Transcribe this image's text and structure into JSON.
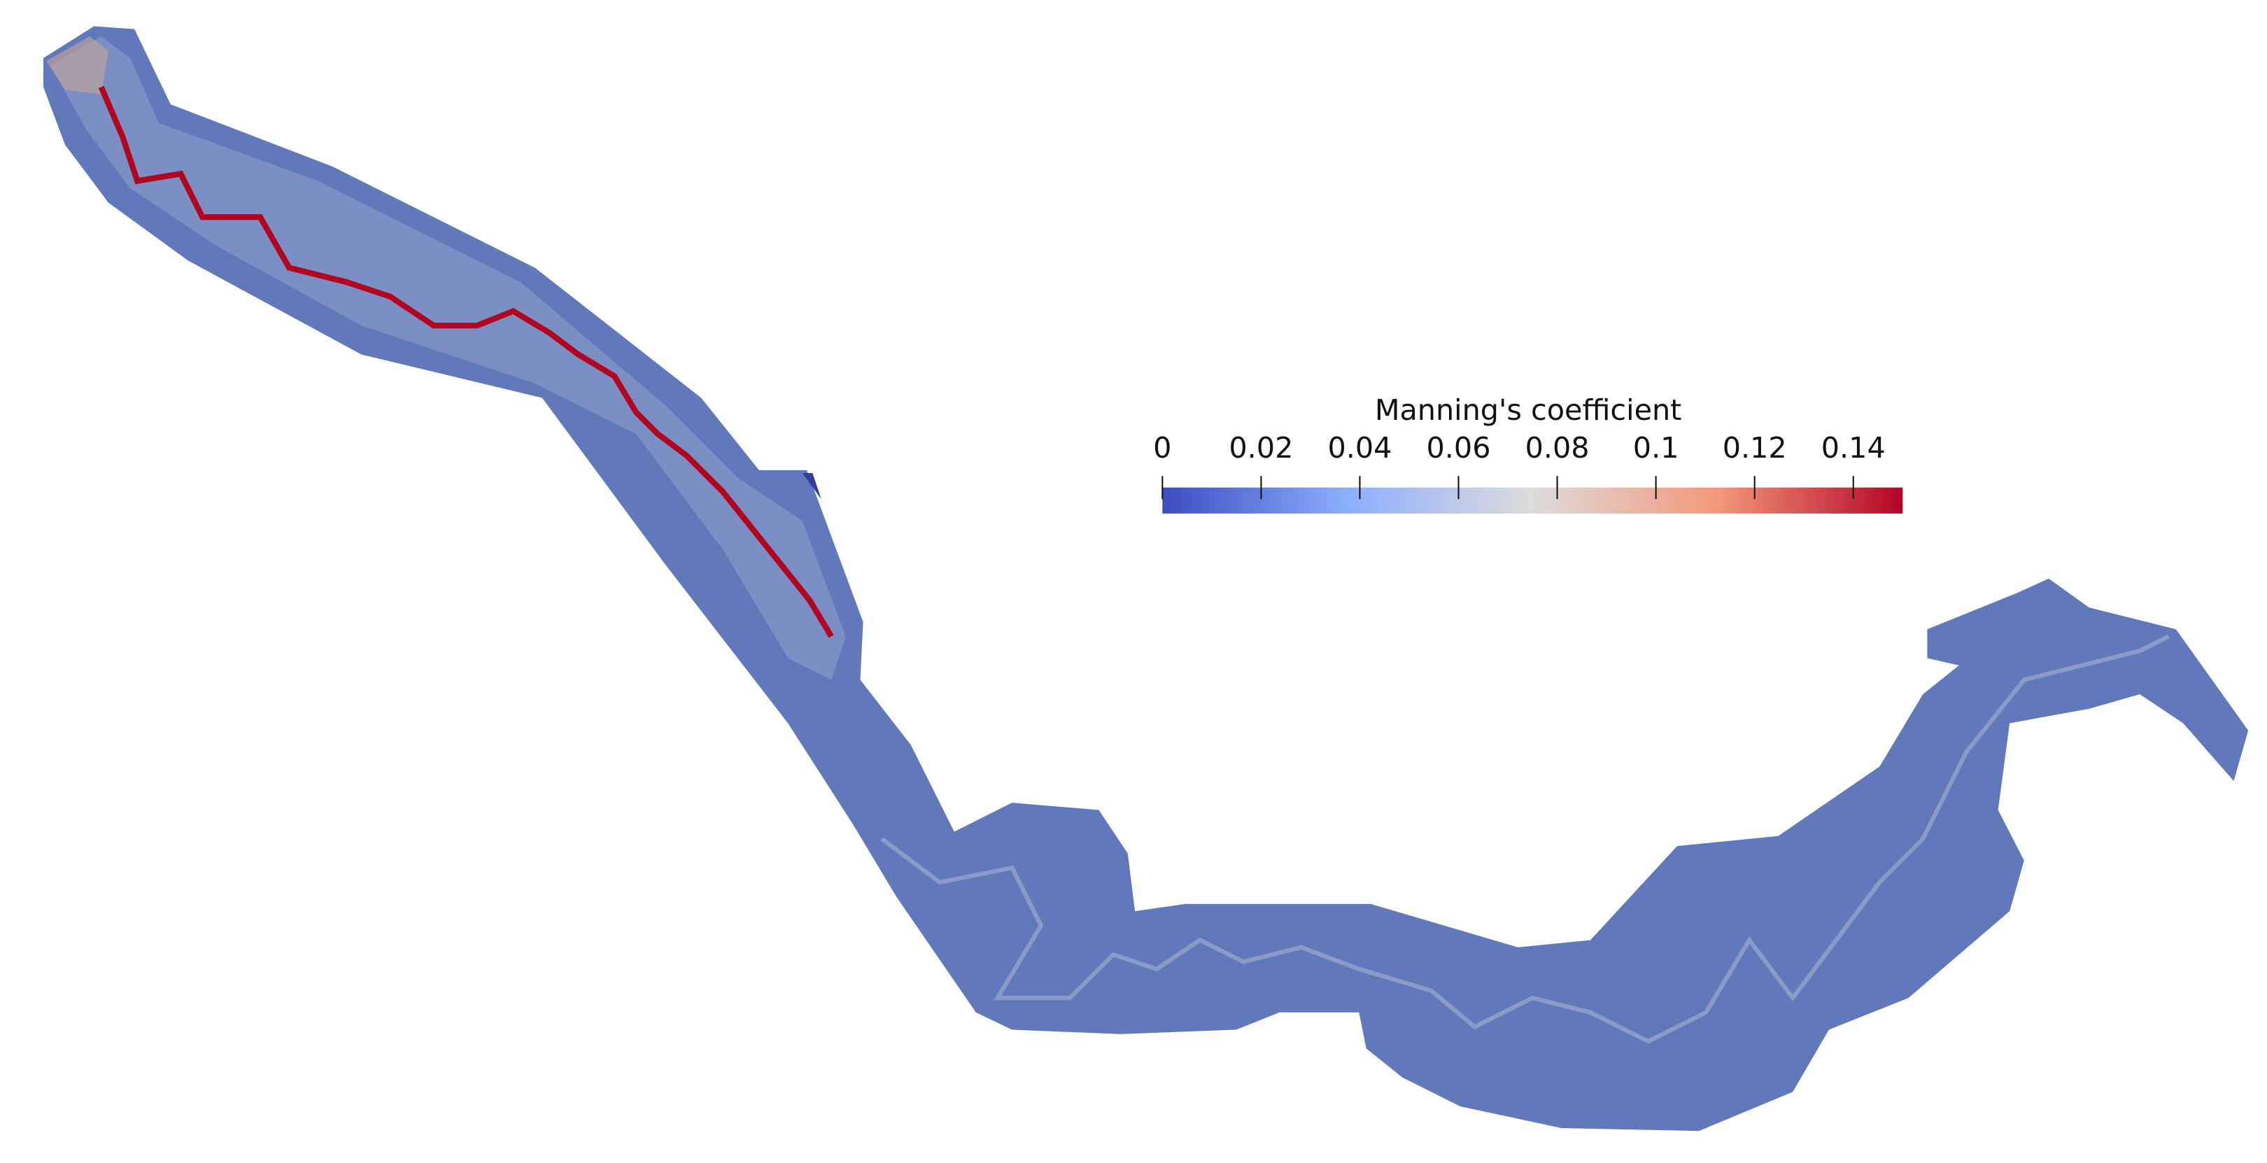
{
  "colorbar": {
    "title": "Manning's coefficient",
    "clim": [
      0,
      0.15
    ],
    "ticks": [
      0,
      0.02,
      0.04,
      0.06,
      0.08,
      0.1,
      0.12,
      0.14
    ],
    "colors": [
      "#3b4cc0",
      "#8caffe",
      "#dddcdc",
      "#f4987a",
      "#b40426"
    ]
  }
}
